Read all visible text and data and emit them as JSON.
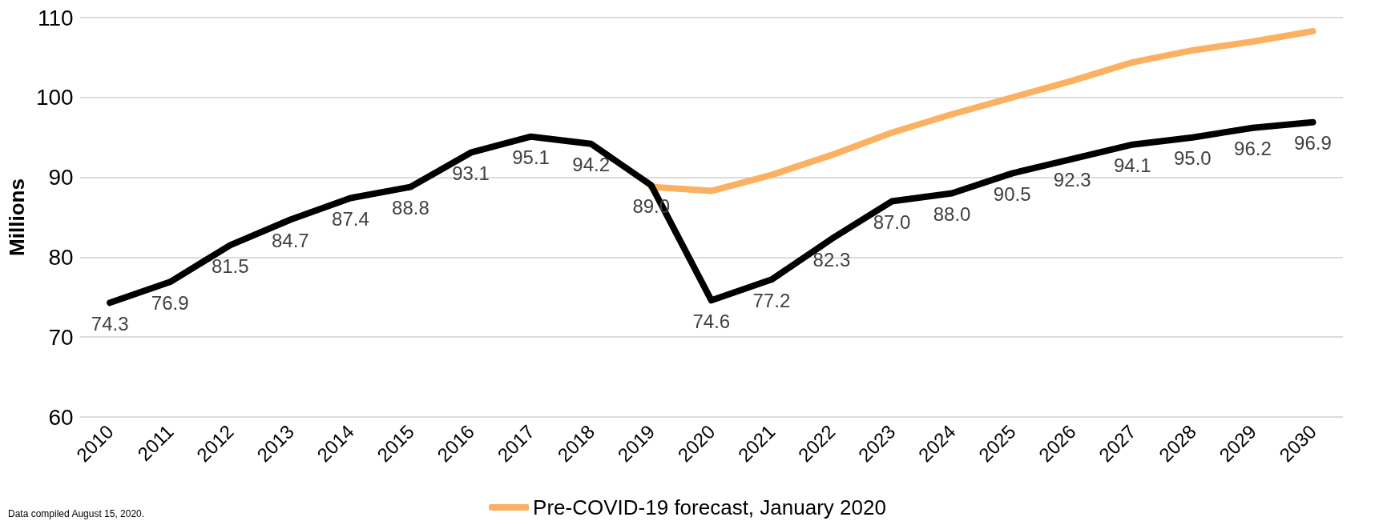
{
  "chart_data": {
    "type": "line",
    "ylabel": "Millions",
    "categories": [
      "2010",
      "2011",
      "2012",
      "2013",
      "2014",
      "2015",
      "2016",
      "2017",
      "2018",
      "2019",
      "2020",
      "2021",
      "2022",
      "2023",
      "2024",
      "2025",
      "2026",
      "2027",
      "2028",
      "2029",
      "2030"
    ],
    "series": [
      {
        "name": "Pre-COVID-19 forecast, January 2020",
        "color": "#fbb161",
        "values": [
          null,
          null,
          null,
          null,
          null,
          null,
          null,
          null,
          null,
          88.8,
          88.3,
          90.3,
          92.8,
          95.6,
          97.9,
          100.0,
          102.1,
          104.4,
          105.9,
          107.0,
          108.3
        ]
      },
      {
        "color": "#000000",
        "values": [
          74.3,
          76.9,
          81.5,
          84.7,
          87.4,
          88.8,
          93.1,
          95.1,
          94.2,
          89.0,
          74.6,
          77.2,
          82.3,
          87.0,
          88.0,
          90.5,
          92.3,
          94.1,
          95.0,
          96.2,
          96.9
        ],
        "value_labels": [
          "74.3",
          "76.9",
          "81.5",
          "84.7",
          "87.4",
          "88.8",
          "93.1",
          "95.1",
          "94.2",
          "89.0",
          "74.6",
          "77.2",
          "82.3",
          "87.0",
          "88.0",
          "90.5",
          "92.3",
          "94.1",
          "95.0",
          "96.2",
          "96.9"
        ]
      }
    ],
    "ylim": [
      60,
      110
    ],
    "yticks": [
      60,
      70,
      80,
      90,
      100,
      110
    ],
    "grid": "y",
    "legend": "bottom",
    "marker": "none",
    "line_style": "solid",
    "annotations": [
      "Data compiled August 15, 2020."
    ]
  }
}
